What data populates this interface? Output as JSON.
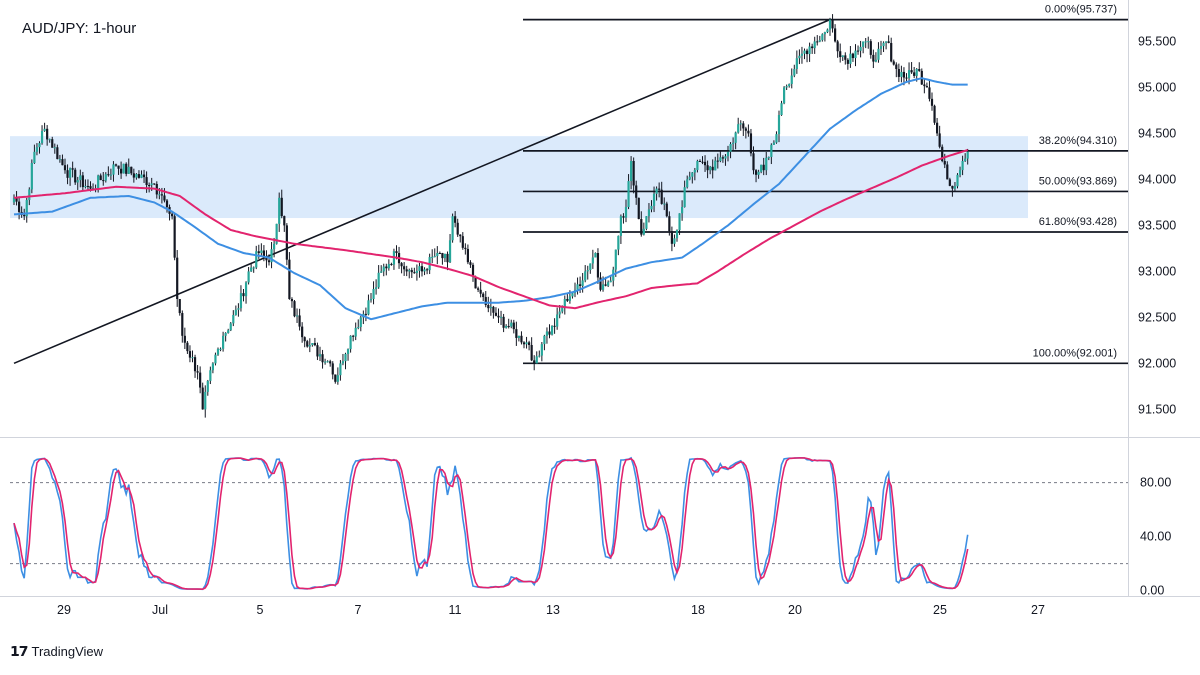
{
  "chart_data": [
    {
      "type": "candlestick",
      "title": "AUD/JPY: 1-hour",
      "ylim": [
        91.2,
        95.95
      ],
      "y_ticks": [
        "95.500",
        "95.000",
        "94.500",
        "94.000",
        "93.500",
        "93.000",
        "92.500",
        "92.000",
        "91.500"
      ],
      "x_ticks": [
        "29",
        "Jul",
        "5",
        "7",
        "11",
        "13",
        "18",
        "20",
        "25",
        "27"
      ],
      "support_resistance_zone": {
        "low": 93.58,
        "high": 94.47,
        "color": "#dbeafb"
      },
      "fibonacci_levels": [
        {
          "label": "0.00%(95.737)",
          "ratio": 0.0,
          "price": 95.737
        },
        {
          "label": "38.20%(94.310)",
          "ratio": 0.382,
          "price": 94.31
        },
        {
          "label": "50.00%(93.869)",
          "ratio": 0.5,
          "price": 93.869
        },
        {
          "label": "61.80%(93.428)",
          "ratio": 0.618,
          "price": 93.428
        },
        {
          "label": "100.00%(92.001)",
          "ratio": 1.0,
          "price": 92.001
        }
      ],
      "trendline": {
        "from_price": 92.001,
        "to_price": 95.737
      },
      "series": [
        {
          "kind": "price",
          "key_points": [
            [
              0,
              93.8
            ],
            [
              4,
              93.6
            ],
            [
              8,
              94.3
            ],
            [
              12,
              94.55
            ],
            [
              20,
              94.1
            ],
            [
              30,
              93.9
            ],
            [
              40,
              94.15
            ],
            [
              55,
              93.95
            ],
            [
              60,
              93.7
            ],
            [
              62,
              93.6
            ],
            [
              64,
              92.7
            ],
            [
              66,
              92.3
            ],
            [
              72,
              91.9
            ],
            [
              74,
              91.5
            ],
            [
              78,
              92.0
            ],
            [
              82,
              92.3
            ],
            [
              88,
              92.6
            ],
            [
              92,
              93.0
            ],
            [
              96,
              93.2
            ],
            [
              100,
              93.1
            ],
            [
              102,
              93.3
            ],
            [
              104,
              93.8
            ],
            [
              106,
              93.5
            ],
            [
              108,
              92.7
            ],
            [
              112,
              92.4
            ],
            [
              116,
              92.2
            ],
            [
              120,
              92.1
            ],
            [
              124,
              92.0
            ],
            [
              126,
              91.8
            ],
            [
              128,
              92.0
            ],
            [
              132,
              92.3
            ],
            [
              136,
              92.5
            ],
            [
              140,
              92.7
            ],
            [
              144,
              93.0
            ],
            [
              150,
              93.2
            ],
            [
              154,
              93.0
            ],
            [
              160,
              93.0
            ],
            [
              166,
              93.2
            ],
            [
              170,
              93.1
            ],
            [
              172,
              93.6
            ],
            [
              174,
              93.4
            ],
            [
              178,
              93.1
            ],
            [
              182,
              92.8
            ],
            [
              186,
              92.6
            ],
            [
              190,
              92.5
            ],
            [
              194,
              92.4
            ],
            [
              198,
              92.3
            ],
            [
              202,
              92.2
            ],
            [
              204,
              92.0
            ],
            [
              208,
              92.3
            ],
            [
              212,
              92.4
            ],
            [
              216,
              92.7
            ],
            [
              220,
              92.8
            ],
            [
              224,
              93.0
            ],
            [
              228,
              93.2
            ],
            [
              230,
              92.8
            ],
            [
              234,
              92.9
            ],
            [
              238,
              93.6
            ],
            [
              240,
              93.7
            ],
            [
              242,
              94.2
            ],
            [
              244,
              93.8
            ],
            [
              246,
              93.4
            ],
            [
              248,
              93.6
            ],
            [
              252,
              93.9
            ],
            [
              256,
              93.6
            ],
            [
              258,
              93.3
            ],
            [
              262,
              93.7
            ],
            [
              264,
              94.0
            ],
            [
              268,
              94.2
            ],
            [
              272,
              94.1
            ],
            [
              276,
              94.2
            ],
            [
              280,
              94.3
            ],
            [
              284,
              94.6
            ],
            [
              288,
              94.5
            ],
            [
              290,
              94.1
            ],
            [
              294,
              94.1
            ],
            [
              298,
              94.4
            ],
            [
              300,
              94.7
            ],
            [
              302,
              95.0
            ],
            [
              306,
              95.2
            ],
            [
              310,
              95.4
            ],
            [
              314,
              95.5
            ],
            [
              318,
              95.6
            ],
            [
              320,
              95.737
            ],
            [
              322,
              95.5
            ],
            [
              326,
              95.3
            ],
            [
              330,
              95.4
            ],
            [
              334,
              95.5
            ],
            [
              338,
              95.3
            ],
            [
              342,
              95.5
            ],
            [
              346,
              95.2
            ],
            [
              350,
              95.1
            ],
            [
              354,
              95.2
            ],
            [
              358,
              95.0
            ],
            [
              360,
              94.8
            ],
            [
              362,
              94.5
            ],
            [
              364,
              94.2
            ],
            [
              366,
              94.0
            ],
            [
              368,
              93.9
            ],
            [
              370,
              94.05
            ],
            [
              372,
              94.2
            ],
            [
              374,
              94.3
            ]
          ]
        },
        {
          "kind": "ma-fast",
          "color": "#3d8fe3",
          "points": [
            [
              0,
              93.62
            ],
            [
              15,
              93.65
            ],
            [
              30,
              93.8
            ],
            [
              45,
              93.82
            ],
            [
              55,
              93.75
            ],
            [
              62,
              93.65
            ],
            [
              70,
              93.5
            ],
            [
              80,
              93.3
            ],
            [
              90,
              93.2
            ],
            [
              100,
              93.15
            ],
            [
              110,
              92.98
            ],
            [
              120,
              92.85
            ],
            [
              130,
              92.6
            ],
            [
              140,
              92.48
            ],
            [
              150,
              92.55
            ],
            [
              160,
              92.62
            ],
            [
              170,
              92.66
            ],
            [
              180,
              92.66
            ],
            [
              190,
              92.66
            ],
            [
              200,
              92.68
            ],
            [
              210,
              92.72
            ],
            [
              220,
              92.78
            ],
            [
              230,
              92.9
            ],
            [
              240,
              93.03
            ],
            [
              250,
              93.1
            ],
            [
              262,
              93.15
            ],
            [
              270,
              93.3
            ],
            [
              280,
              93.5
            ],
            [
              290,
              93.73
            ],
            [
              300,
              93.95
            ],
            [
              310,
              94.25
            ],
            [
              320,
              94.55
            ],
            [
              330,
              94.75
            ],
            [
              340,
              94.93
            ],
            [
              350,
              95.06
            ],
            [
              356,
              95.1
            ],
            [
              362,
              95.06
            ],
            [
              368,
              95.03
            ],
            [
              374,
              95.03
            ]
          ]
        },
        {
          "kind": "ma-slow",
          "color": "#e2246e",
          "points": [
            [
              0,
              93.8
            ],
            [
              20,
              93.85
            ],
            [
              40,
              93.92
            ],
            [
              55,
              93.9
            ],
            [
              65,
              93.82
            ],
            [
              75,
              93.62
            ],
            [
              85,
              93.45
            ],
            [
              95,
              93.38
            ],
            [
              110,
              93.3
            ],
            [
              130,
              93.23
            ],
            [
              150,
              93.15
            ],
            [
              160,
              93.1
            ],
            [
              170,
              93.03
            ],
            [
              180,
              92.95
            ],
            [
              190,
              92.83
            ],
            [
              200,
              92.73
            ],
            [
              210,
              92.63
            ],
            [
              220,
              92.6
            ],
            [
              230,
              92.67
            ],
            [
              240,
              92.73
            ],
            [
              250,
              92.82
            ],
            [
              260,
              92.85
            ],
            [
              268,
              92.87
            ],
            [
              276,
              93.0
            ],
            [
              286,
              93.18
            ],
            [
              296,
              93.35
            ],
            [
              306,
              93.5
            ],
            [
              316,
              93.65
            ],
            [
              326,
              93.78
            ],
            [
              336,
              93.9
            ],
            [
              346,
              94.02
            ],
            [
              356,
              94.15
            ],
            [
              366,
              94.25
            ],
            [
              374,
              94.32
            ]
          ]
        }
      ]
    },
    {
      "type": "line",
      "ylim": [
        -4,
        113
      ],
      "y_ticks": [
        "80.00",
        "40.00",
        "0.00"
      ],
      "levels": [
        80,
        20
      ],
      "series": [
        {
          "kind": "stoch-k",
          "color": "#3d8fe3"
        },
        {
          "kind": "stoch-d",
          "color": "#e2246e"
        }
      ]
    }
  ],
  "colors": {
    "bullish": "#26a69a",
    "bearish": "#131722",
    "fib_line": "#131722",
    "grid_separator": "#d1d4dc",
    "axis_text": "#131722"
  },
  "footer": {
    "brand_icon": "tradingview-logo-icon",
    "brand_text": "TradingView"
  }
}
